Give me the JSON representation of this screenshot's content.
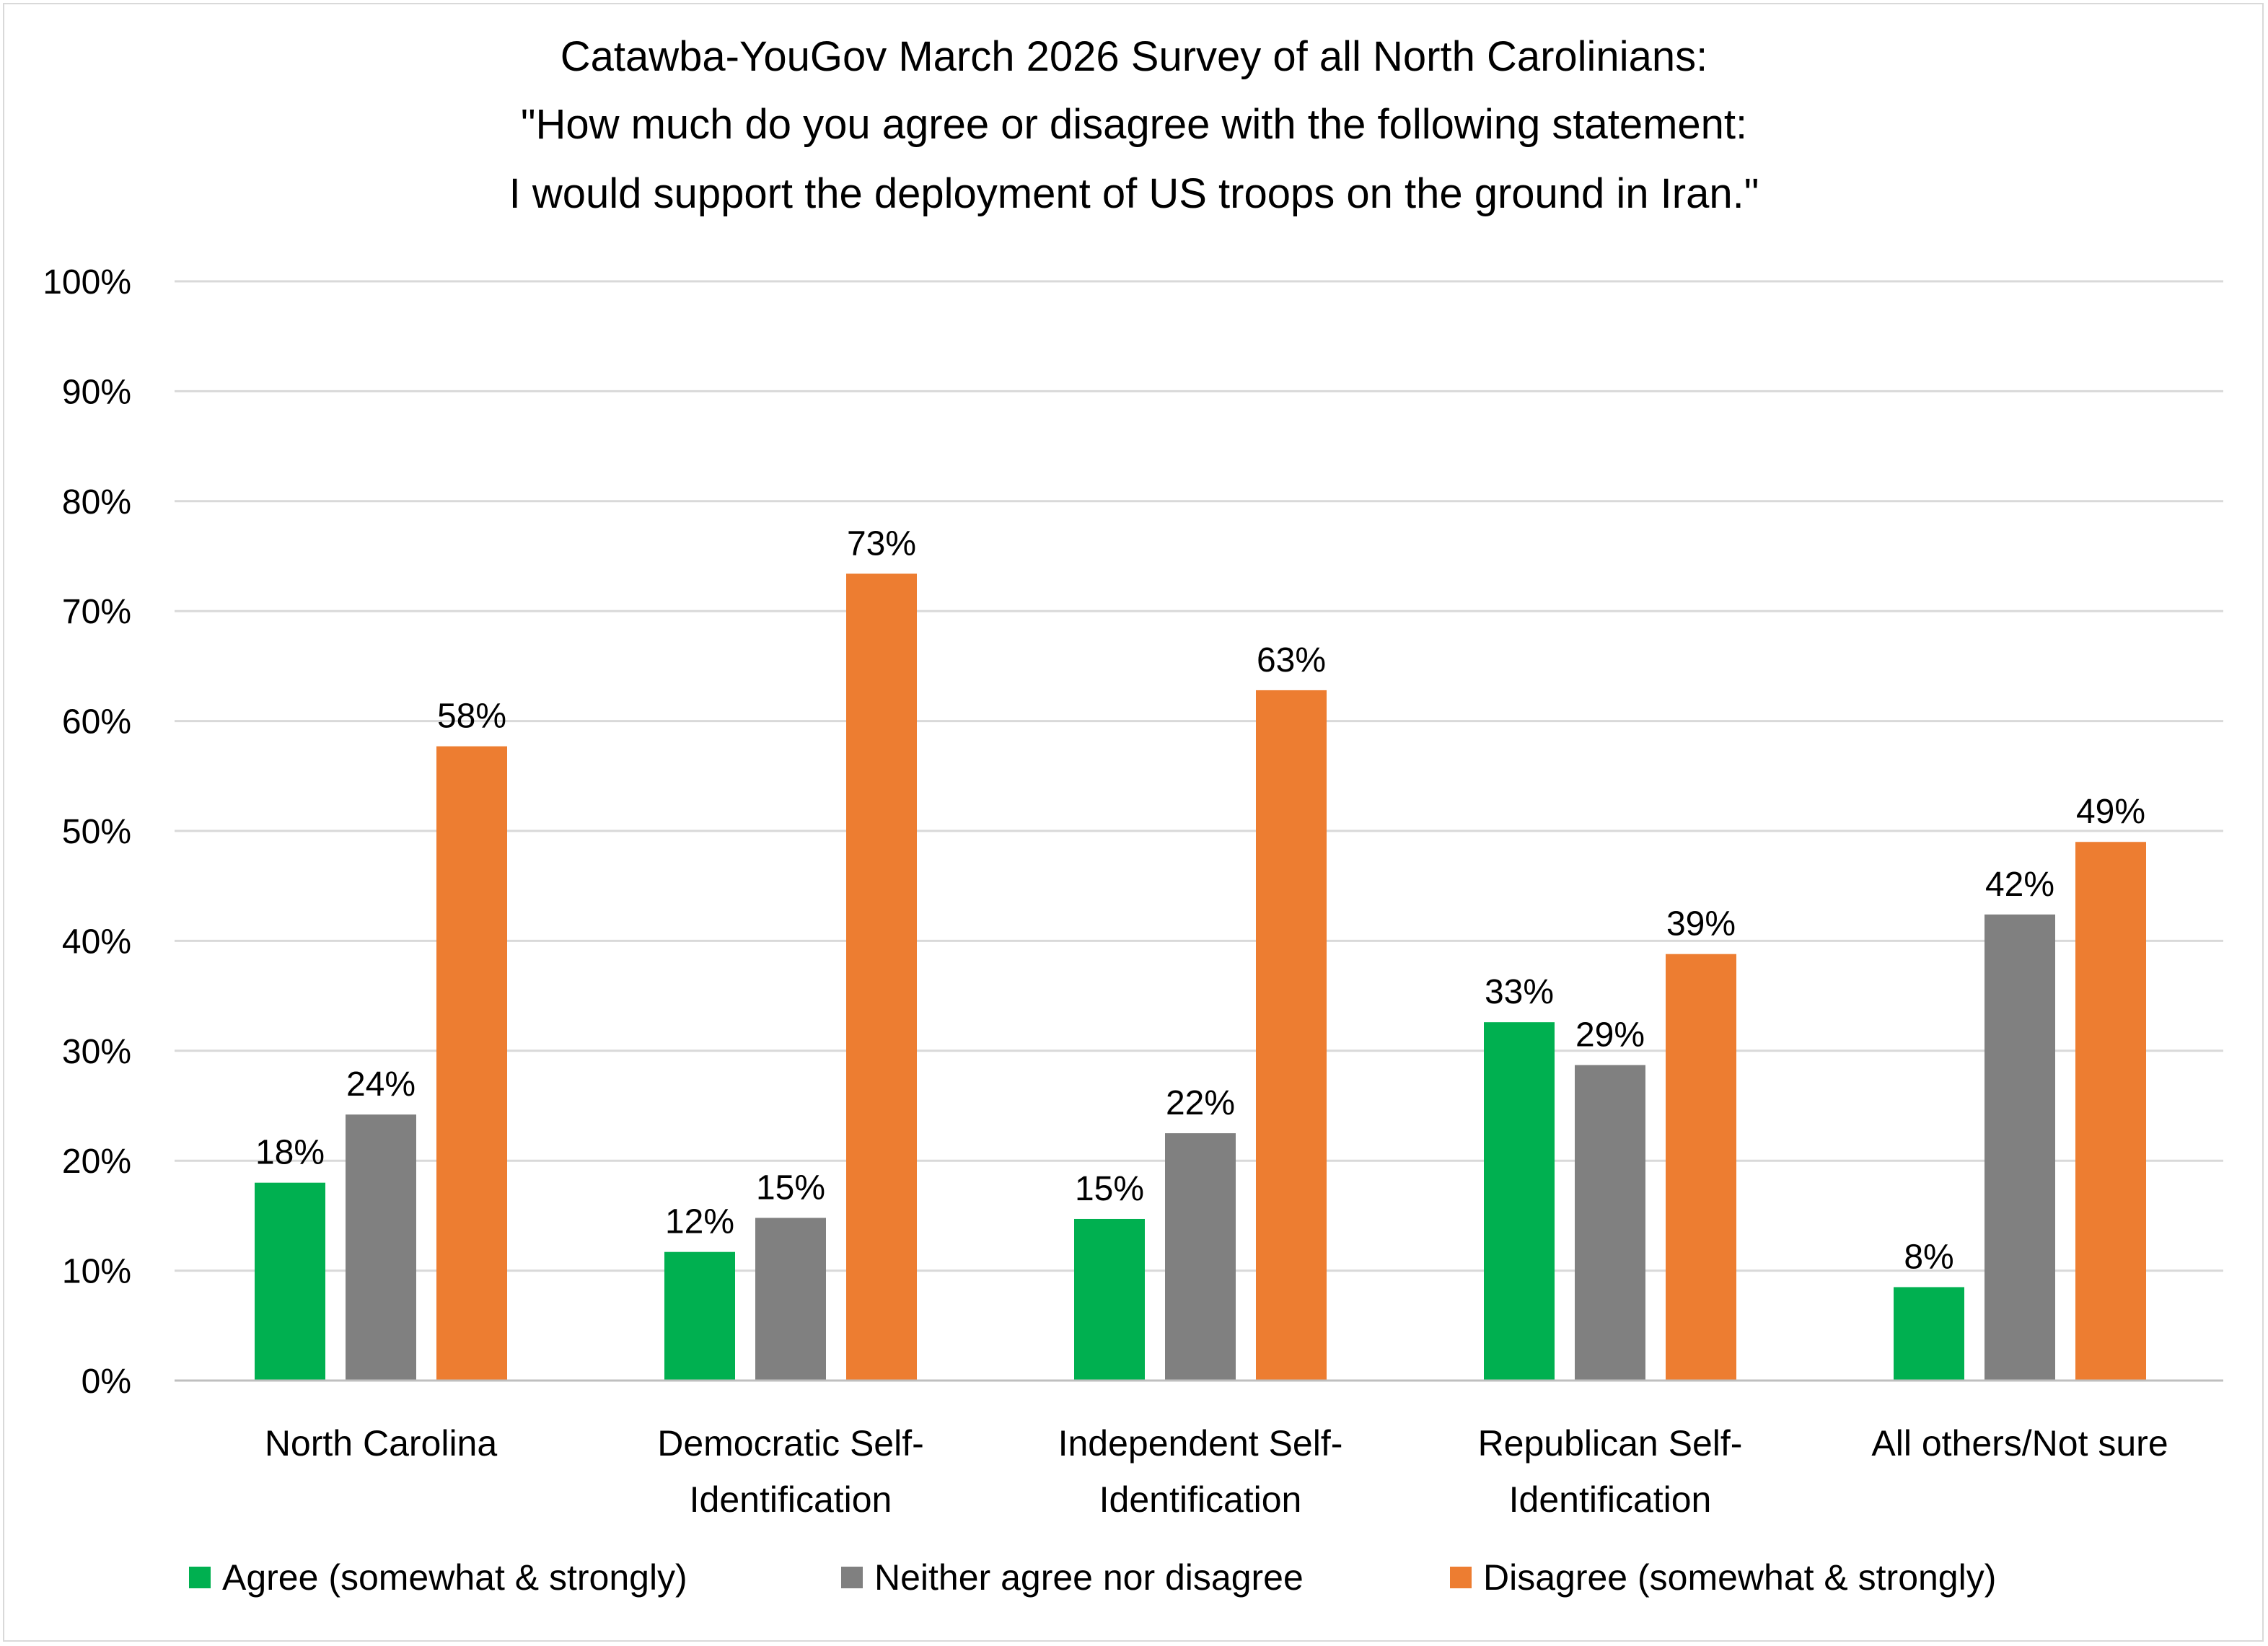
{
  "chart_data": {
    "type": "bar",
    "title_lines": [
      "Catawba-YouGov March 2026 Survey of all North Carolinians:",
      "\"How much do you agree or disagree with the following statement:",
      "I would support the deployment of US troops on the ground in Iran.\""
    ],
    "categories": [
      [
        "North Carolina"
      ],
      [
        "Democratic Self-",
        "Identification"
      ],
      [
        "Independent Self-",
        "Identification"
      ],
      [
        "Republican Self-",
        "Identification"
      ],
      [
        "All others/Not sure"
      ]
    ],
    "series": [
      {
        "name": "Agree (somewhat & strongly)",
        "color": "#00b050",
        "values": [
          18,
          11.7,
          14.7,
          32.6,
          8.5
        ],
        "labels": [
          "18%",
          "12%",
          "15%",
          "33%",
          "8%"
        ]
      },
      {
        "name": "Neither agree nor disagree",
        "color": "#808080",
        "values": [
          24.2,
          14.8,
          22.5,
          28.7,
          42.4
        ],
        "labels": [
          "24%",
          "15%",
          "22%",
          "29%",
          "42%"
        ]
      },
      {
        "name": "Disagree (somewhat & strongly)",
        "color": "#ed7d31",
        "values": [
          57.7,
          73.4,
          62.8,
          38.8,
          49
        ],
        "labels": [
          "58%",
          "73%",
          "63%",
          "39%",
          "49%"
        ]
      }
    ],
    "y_ticks": [
      "0%",
      "10%",
      "20%",
      "30%",
      "40%",
      "50%",
      "60%",
      "70%",
      "80%",
      "90%",
      "100%"
    ],
    "ylim": [
      0,
      100
    ],
    "xlabel": "",
    "ylabel": "",
    "grid": true,
    "legend_position": "bottom"
  }
}
